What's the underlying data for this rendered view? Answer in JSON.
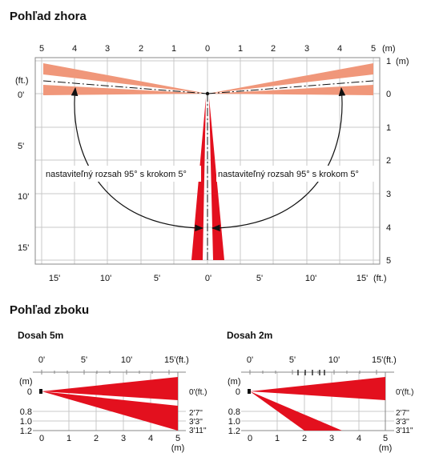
{
  "top_view": {
    "title": "Pohľad zhora",
    "unit_m": "(m)",
    "unit_ft": "(ft.)",
    "x_m_ticks": [
      "5",
      "4",
      "3",
      "2",
      "1",
      "0",
      "1",
      "2",
      "3",
      "4",
      "5"
    ],
    "y_m_ticks": [
      "1",
      "0",
      "1",
      "2",
      "3",
      "4",
      "5"
    ],
    "y_ft_ticks": [
      "0'",
      "5'",
      "10'",
      "15'"
    ],
    "x_ft_ticks": [
      "15'",
      "10'",
      "5'",
      "0'",
      "5'",
      "10'",
      "15'"
    ],
    "annotation_left": "nastaviteľný rozsah 95° s krokom 5°",
    "annotation_right": "nastaviteľný rozsah 95° s krokom 5°",
    "colors": {
      "pattern_red": "#e3101e",
      "pattern_salmon": "#f0977a",
      "grid": "#c9c9c9"
    }
  },
  "side_view": {
    "title": "Pohľad zboku",
    "panels": [
      {
        "title": "Dosah 5m",
        "ft_ticks": [
          "0'",
          "5'",
          "10'",
          "15'(ft.)"
        ],
        "m_label": "(m)",
        "y_m_ticks": [
          "0",
          "0.8",
          "1.0",
          "1.2"
        ],
        "x_m_ticks": [
          "0",
          "1",
          "2",
          "3",
          "4",
          "5"
        ],
        "x_m_unit": "(m)",
        "right_labels": [
          "0'(ft.)",
          "2'7''",
          "3'3''",
          "3'11''"
        ]
      },
      {
        "title": "Dosah 2m",
        "ft_ticks": [
          "0'",
          "5'",
          "10'",
          "15'(ft.)"
        ],
        "m_label": "(m)",
        "y_m_ticks": [
          "0",
          "0.8",
          "1.0",
          "1.2"
        ],
        "x_m_ticks": [
          "0",
          "1",
          "2",
          "3",
          "4",
          "5"
        ],
        "x_m_unit": "(m)",
        "right_labels": [
          "0'(ft.)",
          "2'7''",
          "3'3''",
          "3'11''"
        ]
      }
    ]
  }
}
